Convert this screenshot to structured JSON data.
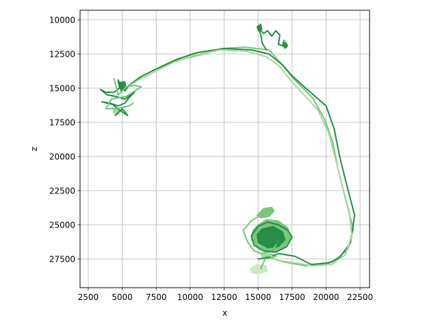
{
  "chart_data": {
    "type": "line",
    "title": "",
    "xlabel": "x",
    "ylabel": "z",
    "xlim": [
      1900,
      23200
    ],
    "ylim": [
      29600,
      9300
    ],
    "y_inverted": true,
    "grid": true,
    "x_ticks": [
      2500,
      5000,
      7500,
      10000,
      12500,
      15000,
      17500,
      20000,
      22500
    ],
    "x_tick_labels": [
      "2500",
      "5000",
      "7500",
      "10000",
      "12500",
      "15000",
      "17500",
      "20000",
      "22500"
    ],
    "y_ticks": [
      10000,
      12500,
      15000,
      17500,
      20000,
      22500,
      25000,
      27500
    ],
    "y_tick_labels": [
      "10000",
      "12500",
      "15000",
      "17500",
      "20000",
      "22500",
      "25000",
      "27500"
    ],
    "colors": {
      "dark": "#238b45",
      "mid": "#74c476",
      "light": "#a1d99b",
      "pale": "#c7e9c0",
      "grid": "#b0b0b0",
      "axis": "#000000"
    },
    "series": [
      {
        "color": "#74c476",
        "points": [
          [
            15200,
            28200
          ],
          [
            15600,
            27300
          ],
          [
            16800,
            27700
          ],
          [
            18500,
            28000
          ],
          [
            20500,
            27700
          ],
          [
            21600,
            26800
          ],
          [
            22000,
            25300
          ],
          [
            21400,
            23000
          ],
          [
            20900,
            21000
          ],
          [
            20500,
            19000
          ],
          [
            19900,
            17300
          ],
          [
            19000,
            15700
          ],
          [
            17600,
            14300
          ],
          [
            16700,
            13200
          ],
          [
            15800,
            12200
          ],
          [
            14000,
            12000
          ],
          [
            12400,
            12100
          ],
          [
            11000,
            12500
          ],
          [
            9000,
            13000
          ],
          [
            7500,
            13600
          ],
          [
            6500,
            14100
          ],
          [
            5600,
            14700
          ],
          [
            5000,
            15200
          ]
        ]
      },
      {
        "color": "#238b45",
        "points": [
          [
            15000,
            27500
          ],
          [
            15800,
            27400
          ],
          [
            16500,
            27100
          ],
          [
            17700,
            27300
          ],
          [
            18900,
            27900
          ],
          [
            20200,
            27800
          ],
          [
            21000,
            27400
          ],
          [
            21800,
            26300
          ],
          [
            22100,
            24300
          ],
          [
            21500,
            22000
          ],
          [
            21000,
            20000
          ],
          [
            20600,
            18000
          ],
          [
            20000,
            16300
          ],
          [
            18500,
            15000
          ],
          [
            17500,
            14100
          ],
          [
            16800,
            13300
          ],
          [
            15800,
            12500
          ],
          [
            14500,
            12200
          ],
          [
            12500,
            12100
          ],
          [
            10500,
            12400
          ],
          [
            9000,
            12900
          ],
          [
            7700,
            13500
          ],
          [
            6300,
            14200
          ],
          [
            5500,
            14800
          ],
          [
            5200,
            15200
          ]
        ]
      },
      {
        "color": "#a1d99b",
        "points": [
          [
            15500,
            27000
          ],
          [
            16400,
            27600
          ],
          [
            17800,
            27800
          ],
          [
            19000,
            28000
          ],
          [
            20400,
            27900
          ],
          [
            21400,
            27200
          ],
          [
            21900,
            25800
          ],
          [
            21700,
            24000
          ],
          [
            21200,
            22200
          ],
          [
            20700,
            20200
          ],
          [
            20200,
            18300
          ],
          [
            19400,
            16600
          ],
          [
            18200,
            15300
          ],
          [
            17200,
            14200
          ],
          [
            16600,
            13400
          ],
          [
            15600,
            12700
          ],
          [
            14200,
            12300
          ],
          [
            12200,
            12200
          ],
          [
            10300,
            12600
          ],
          [
            8800,
            13100
          ],
          [
            7400,
            13800
          ],
          [
            6200,
            14400
          ],
          [
            5400,
            14900
          ]
        ]
      },
      {
        "color": "#74c476",
        "points": [
          [
            16500,
            26200
          ],
          [
            16000,
            26900
          ],
          [
            15200,
            27100
          ],
          [
            14700,
            26900
          ],
          [
            14200,
            26200
          ],
          [
            13900,
            25400
          ],
          [
            14500,
            24700
          ],
          [
            15200,
            24300
          ],
          [
            15700,
            24000
          ],
          [
            16100,
            23900
          ]
        ]
      },
      {
        "color": "#238b45",
        "points": [
          [
            15000,
            25100
          ],
          [
            15700,
            24800
          ],
          [
            16500,
            25000
          ],
          [
            17200,
            25400
          ],
          [
            17500,
            25900
          ],
          [
            17100,
            26600
          ],
          [
            16300,
            27000
          ],
          [
            15400,
            26900
          ],
          [
            14700,
            26500
          ],
          [
            14500,
            25800
          ],
          [
            15000,
            25100
          ]
        ]
      },
      {
        "color": "#238b45",
        "points": [
          [
            15300,
            25400
          ],
          [
            16100,
            25300
          ],
          [
            16800,
            25700
          ],
          [
            16500,
            26300
          ],
          [
            15700,
            26500
          ],
          [
            15000,
            26200
          ],
          [
            15300,
            25400
          ]
        ]
      },
      {
        "color": "#238b45",
        "points": [
          [
            15600,
            12200
          ],
          [
            15300,
            11700
          ],
          [
            15200,
            11100
          ],
          [
            15000,
            10600
          ],
          [
            15400,
            11000
          ],
          [
            15700,
            10800
          ],
          [
            16000,
            11200
          ],
          [
            16300,
            10800
          ],
          [
            16600,
            11100
          ],
          [
            16500,
            11800
          ],
          [
            16800,
            11900
          ],
          [
            16900,
            11500
          ]
        ]
      },
      {
        "color": "#238b45",
        "points": [
          [
            5200,
            15200
          ],
          [
            4900,
            14800
          ],
          [
            4700,
            14400
          ],
          [
            4800,
            15000
          ],
          [
            4400,
            15300
          ],
          [
            3800,
            15300
          ],
          [
            3400,
            15100
          ],
          [
            3900,
            15500
          ],
          [
            4500,
            15600
          ],
          [
            5200,
            15800
          ],
          [
            5500,
            15600
          ],
          [
            5900,
            15300
          ],
          [
            5500,
            15700
          ],
          [
            5200,
            16100
          ],
          [
            4700,
            16300
          ],
          [
            4100,
            16100
          ],
          [
            3500,
            16000
          ],
          [
            4300,
            16200
          ],
          [
            4800,
            16600
          ],
          [
            5400,
            17000
          ],
          [
            5000,
            16500
          ],
          [
            4700,
            16800
          ],
          [
            4500,
            17000
          ]
        ]
      },
      {
        "color": "#74c476",
        "points": [
          [
            4400,
            14300
          ],
          [
            4700,
            15500
          ],
          [
            5300,
            14900
          ],
          [
            5900,
            14800
          ],
          [
            6400,
            14900
          ],
          [
            5300,
            15600
          ],
          [
            4200,
            15800
          ],
          [
            3800,
            16500
          ],
          [
            4600,
            16500
          ],
          [
            5500,
            16300
          ],
          [
            5800,
            16100
          ]
        ]
      }
    ],
    "blobs": [
      {
        "color": "#74c476",
        "points": [
          [
            15000,
            25000
          ],
          [
            15600,
            24600
          ],
          [
            16500,
            24700
          ],
          [
            17200,
            25200
          ],
          [
            17400,
            26000
          ],
          [
            16900,
            26700
          ],
          [
            16000,
            27000
          ],
          [
            15100,
            26800
          ],
          [
            14500,
            26100
          ],
          [
            14600,
            25400
          ]
        ]
      },
      {
        "color": "#238b45",
        "points": [
          [
            15300,
            25300
          ],
          [
            16100,
            25100
          ],
          [
            16800,
            25500
          ],
          [
            17000,
            26100
          ],
          [
            16500,
            26600
          ],
          [
            15700,
            26700
          ],
          [
            15000,
            26300
          ],
          [
            14900,
            25700
          ]
        ]
      },
      {
        "color": "#74c476",
        "points": [
          [
            14900,
            24300
          ],
          [
            15400,
            23800
          ],
          [
            16000,
            23700
          ],
          [
            16200,
            24000
          ],
          [
            15800,
            24400
          ],
          [
            15200,
            24500
          ]
        ]
      },
      {
        "color": "#c7e9c0",
        "points": [
          [
            14400,
            28200
          ],
          [
            14900,
            27900
          ],
          [
            15600,
            28000
          ],
          [
            15700,
            28400
          ],
          [
            15000,
            28600
          ],
          [
            14500,
            28500
          ]
        ]
      },
      {
        "color": "#a1d99b",
        "points": [
          [
            15200,
            27200
          ],
          [
            15800,
            27000
          ],
          [
            16400,
            27300
          ],
          [
            15900,
            27500
          ],
          [
            15300,
            27400
          ]
        ]
      },
      {
        "color": "#238b45",
        "points": [
          [
            16800,
            11900
          ],
          [
            17000,
            11600
          ],
          [
            17200,
            11900
          ],
          [
            17000,
            12100
          ]
        ]
      },
      {
        "color": "#238b45",
        "points": [
          [
            14900,
            10500
          ],
          [
            15200,
            10300
          ],
          [
            15300,
            10700
          ],
          [
            15000,
            10800
          ]
        ]
      },
      {
        "color": "#238b45",
        "points": [
          [
            4700,
            14600
          ],
          [
            5200,
            14500
          ],
          [
            5300,
            15000
          ],
          [
            4900,
            15200
          ]
        ]
      },
      {
        "color": "#a1d99b",
        "points": [
          [
            4300,
            16600
          ],
          [
            4700,
            16500
          ],
          [
            4800,
            16900
          ],
          [
            4400,
            16900
          ]
        ]
      }
    ]
  }
}
